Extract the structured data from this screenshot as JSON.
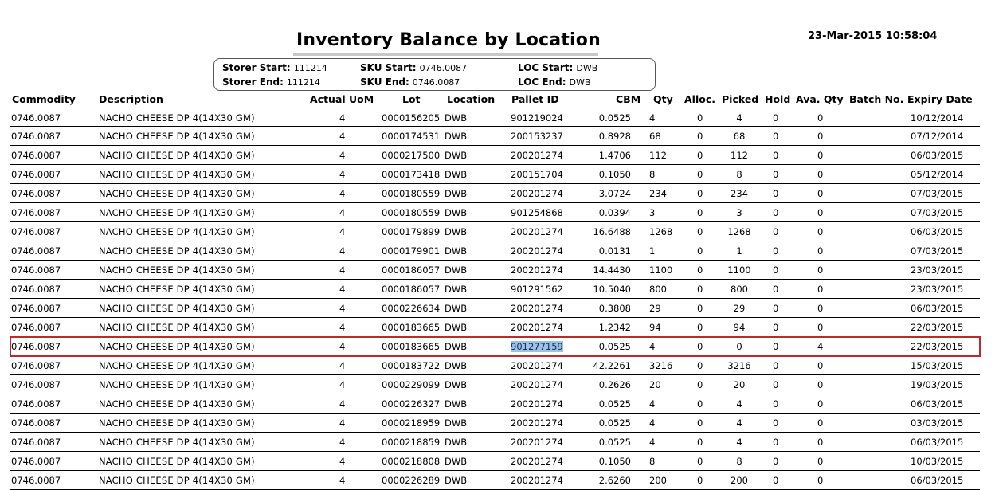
{
  "report": {
    "title": "Inventory Balance by Location",
    "timestamp": "23-Mar-2015 10:58:04"
  },
  "criteria": {
    "storer_start_label": "Storer Start:",
    "storer_start": "111214",
    "storer_end_label": "Storer End:",
    "storer_end": "111214",
    "sku_start_label": "SKU Start:",
    "sku_start": "0746.0087",
    "sku_end_label": "SKU End:",
    "sku_end": "0746.0087",
    "loc_start_label": "LOC Start:",
    "loc_start": "DWB",
    "loc_end_label": "LOC End:",
    "loc_end": "DWB"
  },
  "columns": {
    "commodity": "Commodity",
    "description": "Description",
    "uom": "Actual UoM",
    "lot": "Lot",
    "location": "Location",
    "pallet": "Pallet ID",
    "cbm": "CBM",
    "qty": "Qty",
    "alloc": "Alloc.",
    "picked": "Picked",
    "hold": "Hold",
    "ava": "Ava. Qty",
    "batch": "Batch No.",
    "expiry": "Expiry Date"
  },
  "rows": [
    {
      "commodity": "0746.0087",
      "description": "NACHO CHEESE  DP 4(14X30 GM)",
      "uom": "4",
      "lot": "0000156205",
      "location": "DWB",
      "pallet": "901219024",
      "cbm": "0.0525",
      "qty": "4",
      "alloc": "0",
      "picked": "4",
      "hold": "0",
      "ava": "0",
      "expiry": "10/12/2014"
    },
    {
      "commodity": "0746.0087",
      "description": "NACHO CHEESE  DP 4(14X30 GM)",
      "uom": "4",
      "lot": "0000174531",
      "location": "DWB",
      "pallet": "200153237",
      "cbm": "0.8928",
      "qty": "68",
      "alloc": "0",
      "picked": "68",
      "hold": "0",
      "ava": "0",
      "expiry": "07/12/2014"
    },
    {
      "commodity": "0746.0087",
      "description": "NACHO CHEESE  DP 4(14X30 GM)",
      "uom": "4",
      "lot": "0000217500",
      "location": "DWB",
      "pallet": "200201274",
      "cbm": "1.4706",
      "qty": "112",
      "alloc": "0",
      "picked": "112",
      "hold": "0",
      "ava": "0",
      "expiry": "06/03/2015"
    },
    {
      "commodity": "0746.0087",
      "description": "NACHO CHEESE  DP 4(14X30 GM)",
      "uom": "4",
      "lot": "0000173418",
      "location": "DWB",
      "pallet": "200151704",
      "cbm": "0.1050",
      "qty": "8",
      "alloc": "0",
      "picked": "8",
      "hold": "0",
      "ava": "0",
      "expiry": "05/12/2014"
    },
    {
      "commodity": "0746.0087",
      "description": "NACHO CHEESE  DP 4(14X30 GM)",
      "uom": "4",
      "lot": "0000180559",
      "location": "DWB",
      "pallet": "200201274",
      "cbm": "3.0724",
      "qty": "234",
      "alloc": "0",
      "picked": "234",
      "hold": "0",
      "ava": "0",
      "expiry": "07/03/2015"
    },
    {
      "commodity": "0746.0087",
      "description": "NACHO CHEESE  DP 4(14X30 GM)",
      "uom": "4",
      "lot": "0000180559",
      "location": "DWB",
      "pallet": "901254868",
      "cbm": "0.0394",
      "qty": "3",
      "alloc": "0",
      "picked": "3",
      "hold": "0",
      "ava": "0",
      "expiry": "07/03/2015"
    },
    {
      "commodity": "0746.0087",
      "description": "NACHO CHEESE  DP 4(14X30 GM)",
      "uom": "4",
      "lot": "0000179899",
      "location": "DWB",
      "pallet": "200201274",
      "cbm": "16.6488",
      "qty": "1268",
      "alloc": "0",
      "picked": "1268",
      "hold": "0",
      "ava": "0",
      "expiry": "06/03/2015"
    },
    {
      "commodity": "0746.0087",
      "description": "NACHO CHEESE  DP 4(14X30 GM)",
      "uom": "4",
      "lot": "0000179901",
      "location": "DWB",
      "pallet": "200201274",
      "cbm": "0.0131",
      "qty": "1",
      "alloc": "0",
      "picked": "1",
      "hold": "0",
      "ava": "0",
      "expiry": "07/03/2015"
    },
    {
      "commodity": "0746.0087",
      "description": "NACHO CHEESE  DP 4(14X30 GM)",
      "uom": "4",
      "lot": "0000186057",
      "location": "DWB",
      "pallet": "200201274",
      "cbm": "14.4430",
      "qty": "1100",
      "alloc": "0",
      "picked": "1100",
      "hold": "0",
      "ava": "0",
      "expiry": "23/03/2015"
    },
    {
      "commodity": "0746.0087",
      "description": "NACHO CHEESE  DP 4(14X30 GM)",
      "uom": "4",
      "lot": "0000186057",
      "location": "DWB",
      "pallet": "901291562",
      "cbm": "10.5040",
      "qty": "800",
      "alloc": "0",
      "picked": "800",
      "hold": "0",
      "ava": "0",
      "expiry": "23/03/2015"
    },
    {
      "commodity": "0746.0087",
      "description": "NACHO CHEESE  DP 4(14X30 GM)",
      "uom": "4",
      "lot": "0000226634",
      "location": "DWB",
      "pallet": "200201274",
      "cbm": "0.3808",
      "qty": "29",
      "alloc": "0",
      "picked": "29",
      "hold": "0",
      "ava": "0",
      "expiry": "06/03/2015"
    },
    {
      "commodity": "0746.0087",
      "description": "NACHO CHEESE  DP 4(14X30 GM)",
      "uom": "4",
      "lot": "0000183665",
      "location": "DWB",
      "pallet": "200201274",
      "cbm": "1.2342",
      "qty": "94",
      "alloc": "0",
      "picked": "94",
      "hold": "0",
      "ava": "0",
      "expiry": "22/03/2015"
    },
    {
      "commodity": "0746.0087",
      "description": "NACHO CHEESE  DP 4(14X30 GM)",
      "uom": "4",
      "lot": "0000183665",
      "location": "DWB",
      "pallet": "901277159",
      "cbm": "0.0525",
      "qty": "4",
      "alloc": "0",
      "picked": "0",
      "hold": "0",
      "ava": "4",
      "expiry": "22/03/2015",
      "highlighted": true
    },
    {
      "commodity": "0746.0087",
      "description": "NACHO CHEESE  DP 4(14X30 GM)",
      "uom": "4",
      "lot": "0000183722",
      "location": "DWB",
      "pallet": "200201274",
      "cbm": "42.2261",
      "qty": "3216",
      "alloc": "0",
      "picked": "3216",
      "hold": "0",
      "ava": "0",
      "expiry": "15/03/2015"
    },
    {
      "commodity": "0746.0087",
      "description": "NACHO CHEESE  DP 4(14X30 GM)",
      "uom": "4",
      "lot": "0000229099",
      "location": "DWB",
      "pallet": "200201274",
      "cbm": "0.2626",
      "qty": "20",
      "alloc": "0",
      "picked": "20",
      "hold": "0",
      "ava": "0",
      "expiry": "19/03/2015"
    },
    {
      "commodity": "0746.0087",
      "description": "NACHO CHEESE  DP 4(14X30 GM)",
      "uom": "4",
      "lot": "0000226327",
      "location": "DWB",
      "pallet": "200201274",
      "cbm": "0.0525",
      "qty": "4",
      "alloc": "0",
      "picked": "4",
      "hold": "0",
      "ava": "0",
      "expiry": "06/03/2015"
    },
    {
      "commodity": "0746.0087",
      "description": "NACHO CHEESE  DP 4(14X30 GM)",
      "uom": "4",
      "lot": "0000218959",
      "location": "DWB",
      "pallet": "200201274",
      "cbm": "0.0525",
      "qty": "4",
      "alloc": "0",
      "picked": "4",
      "hold": "0",
      "ava": "0",
      "expiry": "03/03/2015"
    },
    {
      "commodity": "0746.0087",
      "description": "NACHO CHEESE  DP 4(14X30 GM)",
      "uom": "4",
      "lot": "0000218859",
      "location": "DWB",
      "pallet": "200201274",
      "cbm": "0.0525",
      "qty": "4",
      "alloc": "0",
      "picked": "4",
      "hold": "0",
      "ava": "0",
      "expiry": "06/03/2015"
    },
    {
      "commodity": "0746.0087",
      "description": "NACHO CHEESE  DP 4(14X30 GM)",
      "uom": "4",
      "lot": "0000218808",
      "location": "DWB",
      "pallet": "200201274",
      "cbm": "0.1050",
      "qty": "8",
      "alloc": "0",
      "picked": "8",
      "hold": "0",
      "ava": "0",
      "expiry": "10/03/2015"
    },
    {
      "commodity": "0746.0087",
      "description": "NACHO CHEESE  DP 4(14X30 GM)",
      "uom": "4",
      "lot": "0000226289",
      "location": "DWB",
      "pallet": "200201274",
      "cbm": "2.6260",
      "qty": "200",
      "alloc": "0",
      "picked": "200",
      "hold": "0",
      "ava": "0",
      "expiry": "06/03/2015"
    }
  ],
  "colors": {
    "highlight_border": "#c0282e",
    "selection": "#9cc3e6"
  }
}
